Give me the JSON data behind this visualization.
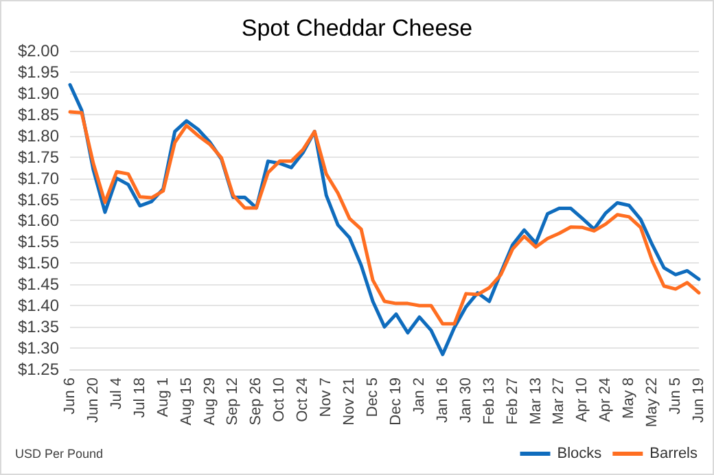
{
  "chart_data": {
    "type": "line",
    "title": "Spot Cheddar Cheese",
    "categories": [
      "Jun 6",
      null,
      "Jun 20",
      null,
      "Jul 4",
      null,
      "Jul 18",
      null,
      "Aug 1",
      null,
      "Aug 15",
      null,
      "Aug 29",
      null,
      "Sep 12",
      null,
      "Sep 26",
      null,
      "Oct 10",
      null,
      "Oct 24",
      null,
      "Nov 7",
      null,
      "Nov 21",
      null,
      "Dec 5",
      null,
      "Dec 19",
      null,
      "Jan 2",
      null,
      "Jan 16",
      null,
      "Jan 30",
      null,
      "Feb 13",
      null,
      "Feb 27",
      null,
      "Mar 13",
      null,
      "Mar 27",
      null,
      "Apr 10",
      null,
      "Apr 24",
      null,
      "May 8",
      null,
      "May 22",
      null,
      "Jun 5",
      null,
      "Jun 19"
    ],
    "series": [
      {
        "name": "Blocks",
        "color": "#0f6cbd",
        "values": [
          1.92,
          1.86,
          1.72,
          1.62,
          1.7,
          1.685,
          1.635,
          1.645,
          1.675,
          1.81,
          1.835,
          1.815,
          1.785,
          1.745,
          1.655,
          1.655,
          1.63,
          1.74,
          1.735,
          1.725,
          1.76,
          1.81,
          1.66,
          1.59,
          1.56,
          1.495,
          1.41,
          1.35,
          1.38,
          1.336,
          1.373,
          1.342,
          1.285,
          1.348,
          1.397,
          1.43,
          1.41,
          1.478,
          1.543,
          1.578,
          1.547,
          1.616,
          1.629,
          1.629,
          1.605,
          1.58,
          1.618,
          1.642,
          1.636,
          1.603,
          1.543,
          1.489,
          1.473,
          1.482,
          1.462
        ]
      },
      {
        "name": "Barrels",
        "color": "#ff6e21",
        "values": [
          1.856,
          1.854,
          1.735,
          1.643,
          1.715,
          1.71,
          1.656,
          1.654,
          1.67,
          1.784,
          1.824,
          1.8,
          1.78,
          1.748,
          1.66,
          1.63,
          1.63,
          1.713,
          1.74,
          1.74,
          1.767,
          1.81,
          1.71,
          1.665,
          1.605,
          1.58,
          1.46,
          1.41,
          1.405,
          1.405,
          1.4,
          1.4,
          1.357,
          1.357,
          1.428,
          1.426,
          1.442,
          1.473,
          1.533,
          1.563,
          1.538,
          1.558,
          1.57,
          1.585,
          1.584,
          1.576,
          1.592,
          1.614,
          1.609,
          1.584,
          1.505,
          1.446,
          1.439,
          1.454,
          1.43
        ]
      }
    ],
    "ylim": [
      1.25,
      2.0
    ],
    "yticks": [
      {
        "value": 1.25,
        "label": "$1.25"
      },
      {
        "value": 1.3,
        "label": "$1.30"
      },
      {
        "value": 1.35,
        "label": "$1.35"
      },
      {
        "value": 1.4,
        "label": "$1.40"
      },
      {
        "value": 1.45,
        "label": "$1.45"
      },
      {
        "value": 1.5,
        "label": "$1.50"
      },
      {
        "value": 1.55,
        "label": "$1.55"
      },
      {
        "value": 1.6,
        "label": "$1.60"
      },
      {
        "value": 1.65,
        "label": "$1.65"
      },
      {
        "value": 1.7,
        "label": "$1.70"
      },
      {
        "value": 1.75,
        "label": "$1.75"
      },
      {
        "value": 1.8,
        "label": "$1.80"
      },
      {
        "value": 1.85,
        "label": "$1.85"
      },
      {
        "value": 1.9,
        "label": "$1.90"
      },
      {
        "value": 1.95,
        "label": "$1.95"
      },
      {
        "value": 2.0,
        "label": "$2.00"
      }
    ],
    "grid": "y",
    "legend": "bottom right",
    "marker": "none",
    "line_style": "solid",
    "annotations": [
      "USD Per Pound"
    ]
  }
}
